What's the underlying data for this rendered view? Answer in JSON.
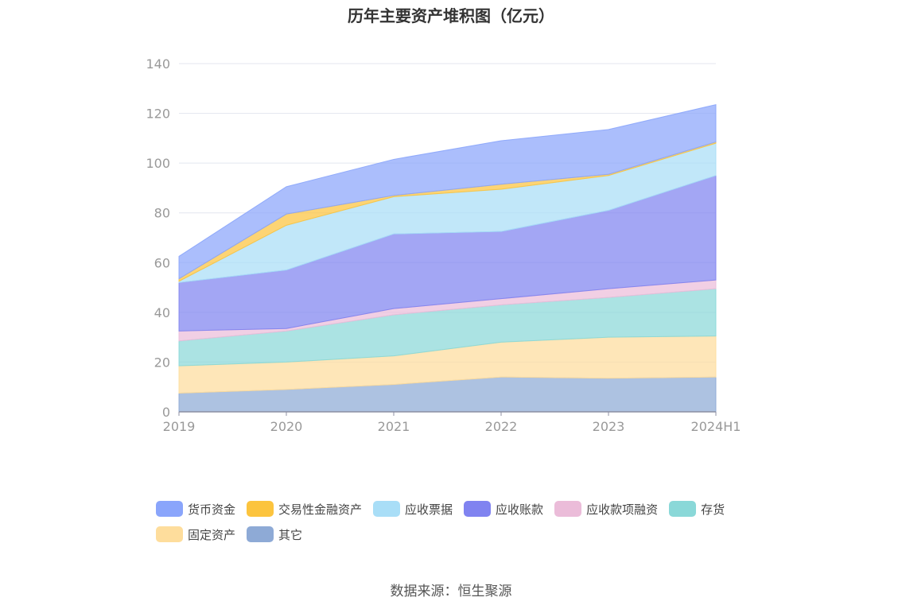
{
  "title": "历年主要资产堆积图（亿元）",
  "source": "数据来源：恒生聚源",
  "chart_data": {
    "type": "area",
    "stacked": true,
    "categories": [
      "2019",
      "2020",
      "2021",
      "2022",
      "2023",
      "2024H1"
    ],
    "ylim": [
      0,
      140
    ],
    "yticks": [
      0,
      20,
      40,
      60,
      80,
      100,
      120,
      140
    ],
    "grid": true,
    "legend_position": "bottom",
    "series": [
      {
        "name": "其它",
        "color": "#8eaad6",
        "values": [
          7.5,
          9.0,
          11.0,
          14.0,
          13.5,
          14.0
        ]
      },
      {
        "name": "固定资产",
        "color": "#fedd9c",
        "values": [
          11.0,
          11.0,
          11.5,
          14.0,
          16.5,
          16.5
        ]
      },
      {
        "name": "存货",
        "color": "#8ad8d8",
        "values": [
          10.0,
          12.5,
          16.5,
          15.0,
          16.0,
          19.0
        ]
      },
      {
        "name": "应收款项融资",
        "color": "#ebbcd9",
        "values": [
          4.0,
          1.0,
          2.5,
          2.5,
          3.5,
          3.5
        ]
      },
      {
        "name": "应收账款",
        "color": "#8083f0",
        "values": [
          19.5,
          23.5,
          30.0,
          27.0,
          31.5,
          42.0
        ]
      },
      {
        "name": "应收票据",
        "color": "#a9def7",
        "values": [
          0.5,
          18.0,
          15.0,
          17.0,
          14.0,
          13.0
        ]
      },
      {
        "name": "交易性金融资产",
        "color": "#fcc43e",
        "values": [
          1.0,
          4.5,
          0.5,
          2.0,
          0.5,
          0.5
        ]
      },
      {
        "name": "货币资金",
        "color": "#8aa5fb",
        "values": [
          9.0,
          11.0,
          14.5,
          17.5,
          18.0,
          15.0
        ]
      }
    ]
  },
  "legend": [
    {
      "label": "货币资金",
      "color": "#8aa5fb"
    },
    {
      "label": "交易性金融资产",
      "color": "#fcc43e"
    },
    {
      "label": "应收票据",
      "color": "#a9def7"
    },
    {
      "label": "应收账款",
      "color": "#8083f0"
    },
    {
      "label": "应收款项融资",
      "color": "#ebbcd9"
    },
    {
      "label": "存货",
      "color": "#8ad8d8"
    },
    {
      "label": "固定资产",
      "color": "#fedd9c"
    },
    {
      "label": "其它",
      "color": "#8eaad6"
    }
  ]
}
